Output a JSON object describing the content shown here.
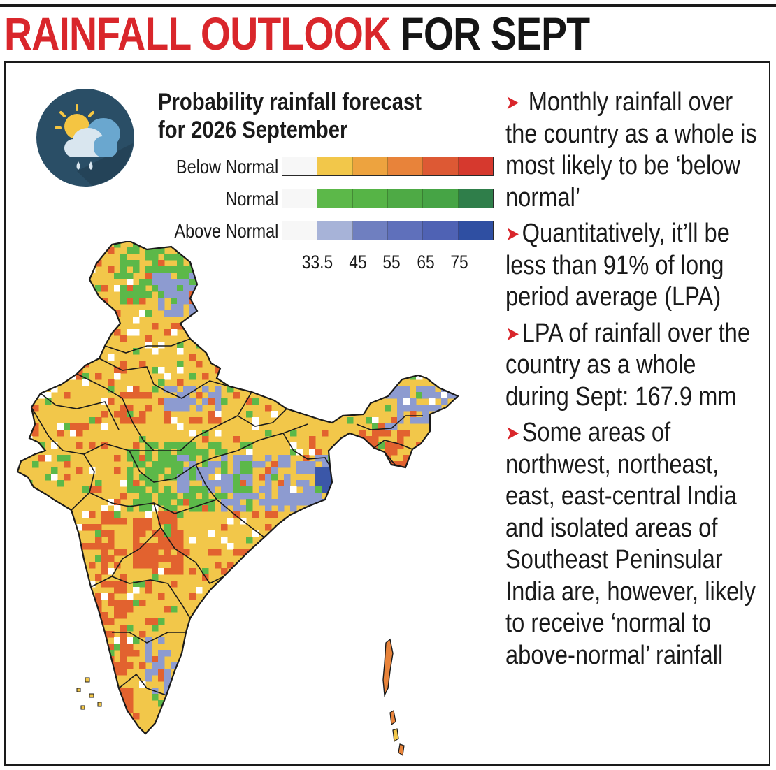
{
  "headline": {
    "part1": "RAINFALL OUTLOOK",
    "part2": "FOR SEPT"
  },
  "legend": {
    "title_line1": "Probability rainfall forecast",
    "title_line2": "for 2026 September",
    "rows": [
      {
        "label": "Below Normal",
        "colors": [
          "#f7f7f7",
          "#f2c74a",
          "#eda33f",
          "#e8833a",
          "#dd5934",
          "#d6392e"
        ]
      },
      {
        "label": "Normal",
        "colors": [
          "#f7f7f7",
          "#5cb849",
          "#56b446",
          "#4eaa45",
          "#46a445",
          "#2f7e4a"
        ]
      },
      {
        "label": "Above Normal",
        "colors": [
          "#f7f7f7",
          "#a7b3d8",
          "#6f7fc0",
          "#5f70bb",
          "#4f62b4",
          "#2f4fa2"
        ]
      }
    ],
    "ticks": [
      "33.5",
      "45",
      "55",
      "65",
      "75"
    ]
  },
  "notes": [
    "Monthly rainfall over the country as a whole is most likely to be ‘below normal’",
    "Quantitatively, it’ll be less than 91% of long period average (LPA)",
    "LPA of rainfall over the country as a whole during Sept: 167.9 mm",
    "Some areas of northwest, northeast, east, east-central India and isolated areas of Southeast Peninsular India are, however, likely to receive ‘normal to above-normal’ rainfall"
  ],
  "map_colors": {
    "below_normal": "#f2c74a",
    "below_normal_strong": "#e2622f",
    "normal": "#5cb849",
    "above_normal": "#8d9bd0",
    "above_normal_strong": "#3b57a8"
  }
}
